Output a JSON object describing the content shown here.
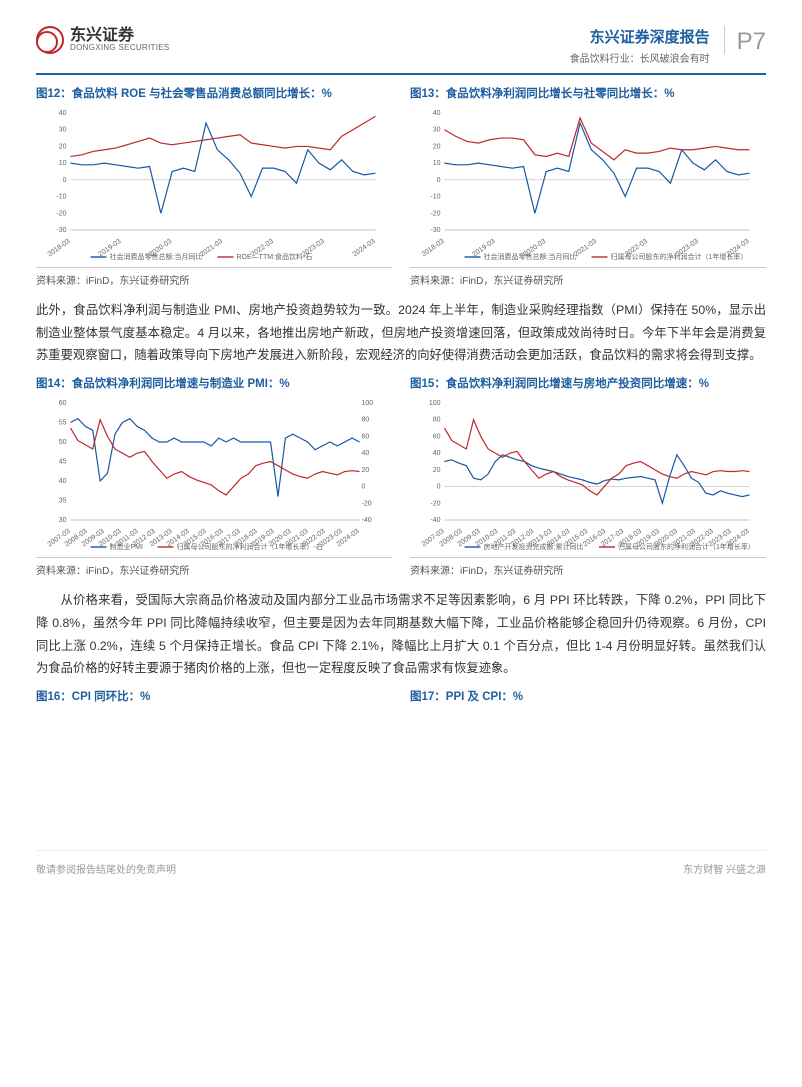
{
  "header": {
    "logo_cn": "东兴证券",
    "logo_en": "DONGXING SECURITIES",
    "title": "东兴证券深度报告",
    "subtitle": "食品饮料行业：长风破浪会有时",
    "page_no": "P7"
  },
  "chart12": {
    "title": "图12：食品饮料 ROE 与社会零售品消费总额同比增长：%",
    "source": "资料来源：iFinD，东兴证券研究所",
    "x_labels": [
      "2018-03",
      "2019-03",
      "2020-03",
      "2021-03",
      "2022-03",
      "2023-03",
      "2024-03"
    ],
    "y_ticks": [
      -30,
      -20,
      -10,
      0,
      10,
      20,
      30,
      40
    ],
    "series1": {
      "name": "社会消费品零售总额:当月同比",
      "color": "#1559a3",
      "values": [
        10,
        9,
        9,
        10,
        9,
        8,
        7,
        8,
        -20,
        5,
        7,
        5,
        34,
        18,
        12,
        4,
        -10,
        7,
        7,
        5,
        -2,
        18,
        10,
        6,
        12,
        5,
        3,
        4
      ]
    },
    "series2": {
      "name": "ROE—TTM:食品饮料-石",
      "color": "#c0272d",
      "values": [
        14,
        15,
        17,
        18,
        19,
        21,
        23,
        25,
        22,
        21,
        22,
        23,
        24,
        25,
        26,
        27,
        22,
        21,
        20,
        19,
        20,
        20,
        19,
        18,
        26,
        30,
        34,
        38
      ]
    }
  },
  "chart13": {
    "title": "图13：食品饮料净利润同比增长与社零同比增长：%",
    "source": "资料来源：iFinD，东兴证券研究所",
    "x_labels": [
      "2018-03",
      "2019-03",
      "2020-03",
      "2021-03",
      "2022-03",
      "2023-03",
      "2024-03"
    ],
    "y_ticks": [
      -30,
      -20,
      -10,
      0,
      10,
      20,
      30,
      40
    ],
    "series1": {
      "name": "社会消费品零售总额:当月同比",
      "color": "#1559a3",
      "values": [
        10,
        9,
        9,
        10,
        9,
        8,
        7,
        8,
        -20,
        5,
        7,
        5,
        34,
        18,
        12,
        4,
        -10,
        7,
        7,
        5,
        -2,
        18,
        10,
        6,
        12,
        5,
        3,
        4
      ]
    },
    "series2": {
      "name": "归属母公司股东的净利润合计（1年增长率）",
      "color": "#c0272d",
      "values": [
        30,
        26,
        23,
        22,
        24,
        25,
        25,
        24,
        15,
        14,
        16,
        14,
        37,
        22,
        17,
        12,
        18,
        16,
        16,
        17,
        19,
        18,
        18,
        19,
        20,
        19,
        18,
        18
      ]
    }
  },
  "para1": "此外，食品饮料净利润与制造业 PMI、房地产投资趋势较为一致。2024 年上半年，制造业采购经理指数（PMI）保持在 50%，显示出制造业整体景气度基本稳定。4 月以来，各地推出房地产新政，但房地产投资增速回落，但政策成效尚待时日。今年下半年会是消费复苏重要观察窗口，随着政策导向下房地产发展进入新阶段，宏观经济的向好使得消费活动会更加活跃，食品饮料的需求将会得到支撑。",
  "chart14": {
    "title": "图14：食品饮料净利润同比增速与制造业 PMI：%",
    "source": "资料来源：iFinD，东兴证券研究所",
    "x_labels": [
      "2007-03",
      "2008-03",
      "2009-03",
      "2010-03",
      "2011-03",
      "2012-03",
      "2013-03",
      "2014-03",
      "2015-03",
      "2016-03",
      "2017-03",
      "2018-03",
      "2019-03",
      "2020-03",
      "2021-03",
      "2022-03",
      "2023-03",
      "2024-03"
    ],
    "y_left_ticks": [
      30,
      35,
      40,
      45,
      50,
      55,
      60
    ],
    "y_right_ticks": [
      -40,
      -20,
      0,
      20,
      40,
      60,
      80,
      100
    ],
    "series1": {
      "name": "制造业PMI",
      "color": "#1559a3",
      "values": [
        55,
        56,
        54,
        53,
        40,
        42,
        52,
        55,
        56,
        54,
        53,
        51,
        50,
        50,
        51,
        50,
        50,
        50,
        50,
        49,
        51,
        50,
        51,
        50,
        50,
        50,
        50,
        50,
        36,
        51,
        52,
        51,
        50,
        48,
        49,
        50,
        49,
        50,
        51,
        50
      ]
    },
    "series2": {
      "name": "归属母公司股东的净利润合计（1年增长率）-右",
      "color": "#c0272d",
      "values": [
        70,
        55,
        50,
        45,
        80,
        60,
        45,
        40,
        35,
        40,
        42,
        30,
        20,
        10,
        15,
        18,
        12,
        8,
        5,
        2,
        -5,
        -10,
        0,
        10,
        15,
        25,
        28,
        30,
        25,
        20,
        15,
        12,
        10,
        15,
        18,
        16,
        14,
        18,
        19,
        18
      ]
    }
  },
  "chart15": {
    "title": "图15：食品饮料净利润同比增速与房地产投资同比增速：%",
    "source": "资料来源：iFinD，东兴证券研究所",
    "x_labels": [
      "2007-03",
      "2008-03",
      "2009-03",
      "2010-03",
      "2011-03",
      "2012-03",
      "2013-03",
      "2014-03",
      "2015-03",
      "2016-03",
      "2017-03",
      "2018-03",
      "2019-03",
      "2020-03",
      "2021-03",
      "2022-03",
      "2023-03",
      "2024-03"
    ],
    "y_ticks": [
      -40,
      -20,
      0,
      20,
      40,
      60,
      80,
      100
    ],
    "series1": {
      "name": "房地产开发投资完成额:累计同比",
      "color": "#1559a3",
      "values": [
        30,
        32,
        28,
        25,
        10,
        8,
        15,
        30,
        38,
        35,
        32,
        30,
        25,
        22,
        20,
        18,
        15,
        12,
        10,
        8,
        5,
        3,
        7,
        9,
        8,
        10,
        11,
        12,
        10,
        8,
        -20,
        12,
        38,
        25,
        10,
        5,
        -8,
        -10,
        -5,
        -8,
        -10,
        -12,
        -10
      ]
    },
    "series2": {
      "name": "归属母公司股东的净利润合计（1年增长率）",
      "color": "#c0272d",
      "values": [
        70,
        55,
        50,
        45,
        80,
        60,
        45,
        40,
        35,
        40,
        42,
        30,
        20,
        10,
        15,
        18,
        12,
        8,
        5,
        2,
        -5,
        -10,
        0,
        10,
        15,
        25,
        28,
        30,
        25,
        20,
        15,
        12,
        10,
        15,
        18,
        16,
        14,
        18,
        19,
        18,
        18,
        19,
        18
      ]
    }
  },
  "para2": "从价格来看，受国际大宗商品价格波动及国内部分工业品市场需求不足等因素影响，6 月 PPI 环比转跌，下降 0.2%，PPI 同比下降 0.8%，虽然今年 PPI 同比降幅持续收窄，但主要是因为去年同期基数大幅下降，工业品价格能够企稳回升仍待观察。6 月份，CPI 同比上涨 0.2%，连续 5 个月保持正增长。食品 CPI 下降 2.1%，降幅比上月扩大 0.1 个百分点，但比 1-4 月份明显好转。虽然我们认为食品价格的好转主要源于猪肉价格的上涨，但也一定程度反映了食品需求有恢复迹象。",
  "chart16": {
    "title": "图16：CPI 同环比：%"
  },
  "chart17": {
    "title": "图17：PPI 及 CPI：%"
  },
  "footer": {
    "left": "敬请参阅报告结尾处的免责声明",
    "right": "东方财智 兴盛之源"
  },
  "style": {
    "accent": "#1e5fa0",
    "series_blue": "#1559a3",
    "series_red": "#c0272d",
    "grid": "#d0d0d0",
    "background": "#ffffff"
  }
}
